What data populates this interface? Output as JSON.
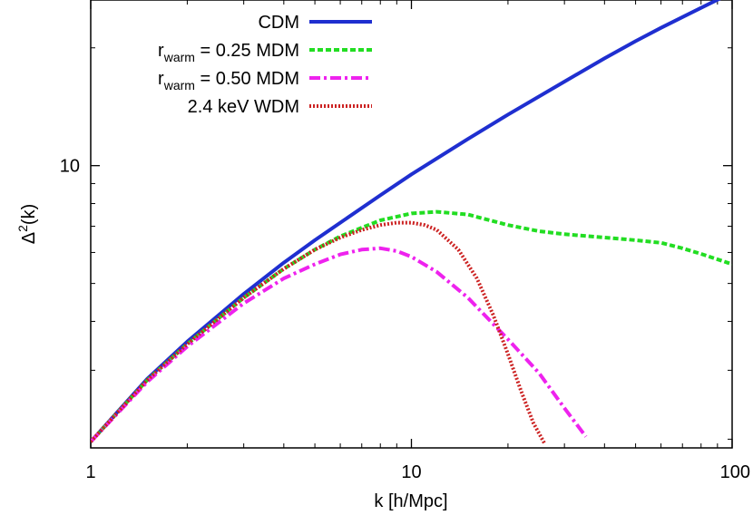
{
  "chart_data": {
    "type": "line",
    "xlabel": "k [h/Mpc]",
    "ylabel_base": "Δ",
    "ylabel_sup": "2",
    "ylabel_tail": "(k)",
    "xscale": "log",
    "yscale": "log",
    "xlim": [
      1,
      100
    ],
    "ylim": [
      1.9,
      26.5
    ],
    "x_ticks": [
      {
        "value": 1,
        "label": "1"
      },
      {
        "value": 10,
        "label": "10"
      },
      {
        "value": 100,
        "label": "100"
      }
    ],
    "y_ticks": [
      {
        "value": 10,
        "label": "10"
      }
    ],
    "grid": false,
    "legend_position": "top-right",
    "series": [
      {
        "legend_main": "CDM",
        "legend_sub": "",
        "legend_tail": "",
        "color": "#1f2fd0",
        "dash": "",
        "width": 4,
        "x": [
          1,
          1.5,
          2,
          3,
          4,
          5,
          6,
          8,
          10,
          15,
          20,
          30,
          40,
          50,
          60,
          80,
          100
        ],
        "y": [
          1.97,
          2.85,
          3.55,
          4.7,
          5.65,
          6.45,
          7.15,
          8.4,
          9.5,
          11.7,
          13.5,
          16.4,
          18.8,
          20.8,
          22.5,
          25.3,
          27.7
        ]
      },
      {
        "legend_main": "r",
        "legend_sub": "warm",
        "legend_tail": " = 0.25 MDM",
        "color": "#22dd22",
        "dash": "6,3",
        "width": 4,
        "x": [
          1,
          1.5,
          2,
          3,
          4,
          5,
          6,
          8,
          10,
          12,
          15,
          20,
          25,
          30,
          40,
          50,
          60,
          70,
          80,
          100
        ],
        "y": [
          1.97,
          2.83,
          3.5,
          4.6,
          5.45,
          6.1,
          6.6,
          7.25,
          7.55,
          7.62,
          7.5,
          7.05,
          6.8,
          6.68,
          6.55,
          6.45,
          6.35,
          6.15,
          5.95,
          5.6
        ]
      },
      {
        "legend_main": "r",
        "legend_sub": "warm",
        "legend_tail": " = 0.50 MDM",
        "color": "#ee22ee",
        "dash": "12,4,3,4",
        "width": 4,
        "x": [
          1,
          1.5,
          2,
          3,
          4,
          5,
          6,
          7,
          8,
          9,
          10,
          12,
          15,
          20,
          25,
          30,
          35
        ],
        "y": [
          1.97,
          2.8,
          3.45,
          4.45,
          5.15,
          5.6,
          5.93,
          6.1,
          6.15,
          6.05,
          5.85,
          5.35,
          4.6,
          3.6,
          2.95,
          2.4,
          2.03
        ]
      },
      {
        "legend_main": "2.4 keV WDM",
        "legend_sub": "",
        "legend_tail": "",
        "color": "#cc2222",
        "dash": "2,2",
        "width": 4,
        "x": [
          1,
          1.5,
          2,
          3,
          4,
          5,
          6,
          7,
          8,
          9,
          10,
          11,
          12,
          14,
          16,
          18,
          20,
          22,
          24,
          26
        ],
        "y": [
          1.97,
          2.83,
          3.5,
          4.6,
          5.45,
          6.1,
          6.55,
          6.85,
          7.05,
          7.15,
          7.15,
          7.05,
          6.85,
          6.1,
          5.15,
          4.15,
          3.3,
          2.65,
          2.2,
          1.95
        ]
      }
    ]
  }
}
